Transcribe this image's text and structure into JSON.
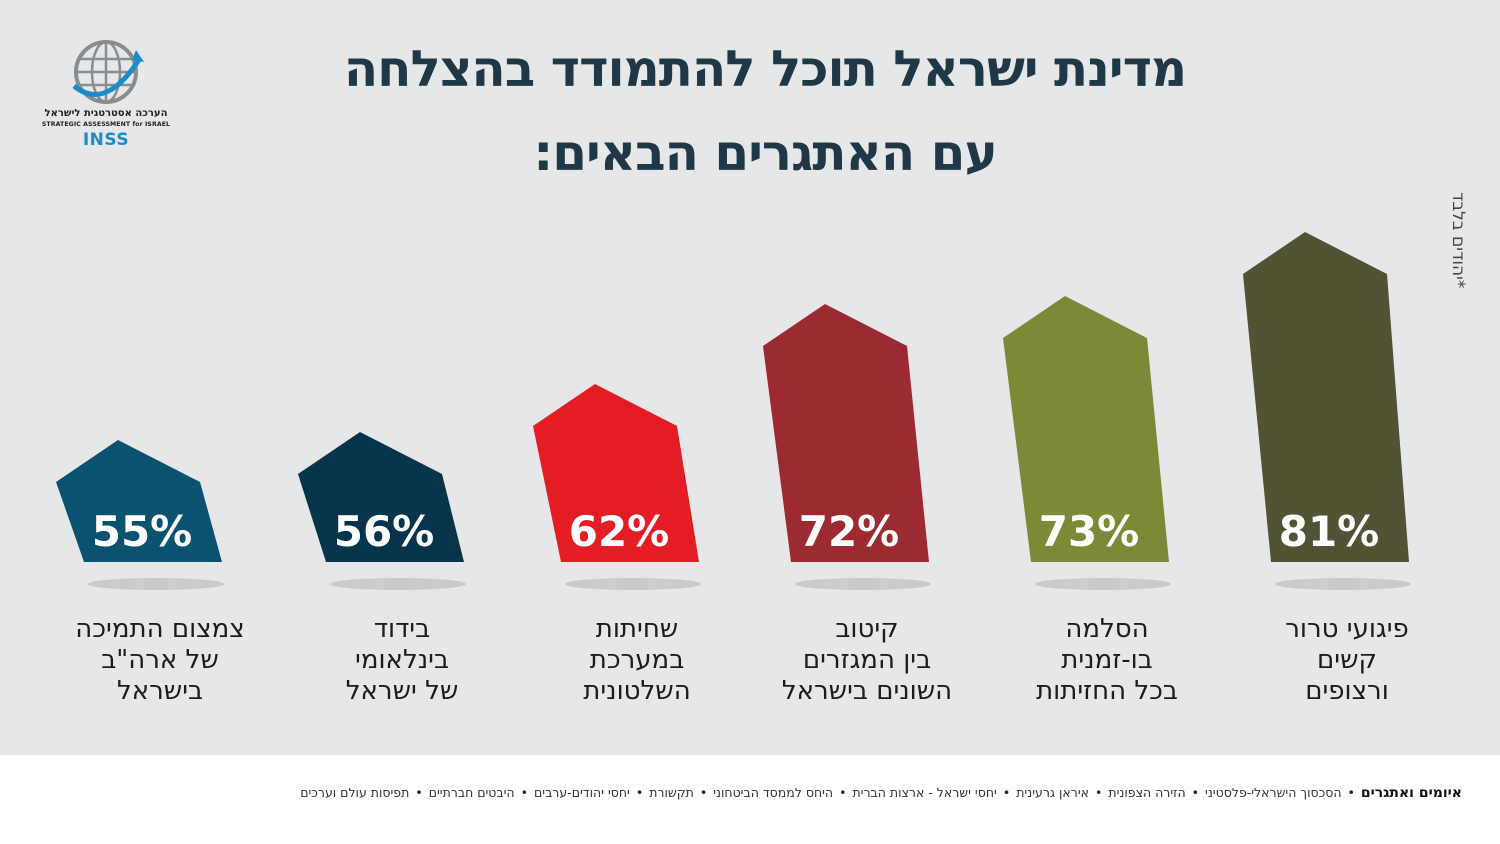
{
  "title_line1": "מדינת ישראל תוכל להתמודד בהצלחה",
  "title_line2": "עם האתגרים הבאים:",
  "footnote": "*יהודים בלבד",
  "logo": {
    "icon": "globe-icon",
    "hebrew": "הערכה אסטרטגית לישראל",
    "english": "STRATEGIC ASSESSMENT for ISRAEL",
    "brand": "INSS"
  },
  "footer": {
    "lead": "איומים ואתגרים",
    "items": [
      "הסכסוך הישראלי-פלסטיני",
      "הזירה הצפונית",
      "איראן גרעינית",
      "יחסי ישראל - ארצות הברית",
      "היחס לממסד הביטחוני",
      "תקשורת",
      "יחסי יהודים-ערבים",
      "היבטים חברתיים",
      "תפיסות עולם וערכים"
    ]
  },
  "chart_data": {
    "type": "bar",
    "categories": [
      "פיגועי טרור קשים ורצופים",
      "הסלמה בו-זמנית בכל החזיתות",
      "קיטוב בין המגזרים השונים בישראל",
      "שחיתות במערכת השלטונית",
      "בידוד בינלאומי של ישראל",
      "צמצום התמיכה של ארה\"ב בישראל"
    ],
    "category_lines": [
      [
        "פיגועי טרור",
        "קשים",
        "ורצופים"
      ],
      [
        "הסלמה",
        "בו-זמנית",
        "בכל החזיתות"
      ],
      [
        "קיטוב",
        "בין המגזרים",
        "השונים בישראל"
      ],
      [
        "שחיתות",
        "במערכת",
        "השלטונית"
      ],
      [
        "בידוד",
        "בינלאומי",
        "של ישראל"
      ],
      [
        "צמצום התמיכה",
        "של ארה\"ב",
        "בישראל"
      ]
    ],
    "values": [
      81,
      73,
      72,
      62,
      56,
      55
    ],
    "value_labels": [
      "81%",
      "73%",
      "72%",
      "62%",
      "56%",
      "55%"
    ],
    "colors": [
      "#525234",
      "#7a8a37",
      "#9c2b31",
      "#e41c24",
      "#06344d",
      "#0b5170"
    ],
    "unit": "%",
    "grid": false,
    "legend": "none"
  }
}
